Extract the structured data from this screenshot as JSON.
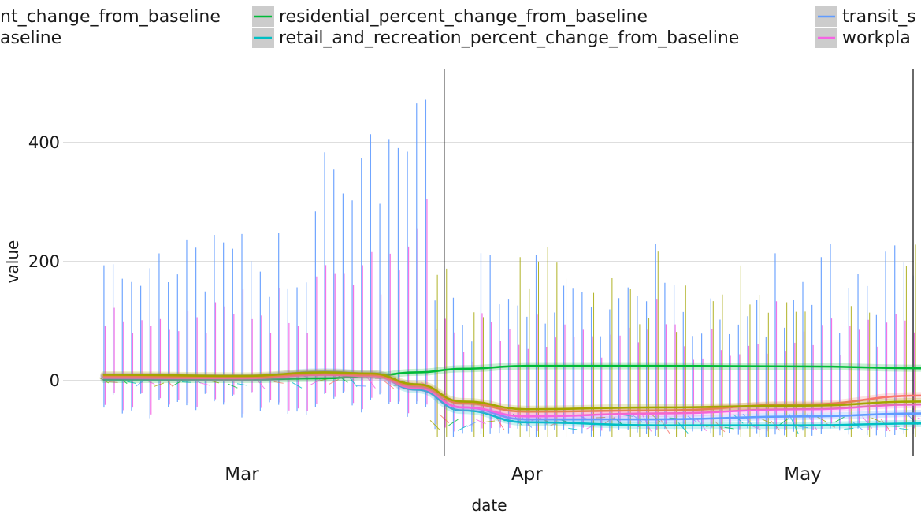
{
  "chart_data": {
    "type": "line",
    "xlabel": "date",
    "ylabel": "value",
    "x_range": [
      "2020-02-15",
      "2020-05-15"
    ],
    "ylim": [
      -135,
      530
    ],
    "y_ticks": [
      0,
      200,
      400
    ],
    "x_ticks": [
      {
        "date": "2020-03-01",
        "label": "Mar"
      },
      {
        "date": "2020-04-01",
        "label": "Apr"
      },
      {
        "date": "2020-05-01",
        "label": "May"
      }
    ],
    "grid": "horizontal",
    "vertical_lines": [
      "2020-03-23",
      "2020-05-19"
    ],
    "legend_position": "top",
    "legend": [
      {
        "label": "nt_change_from_baseline",
        "color": "#a3a500"
      },
      {
        "label": "aseline",
        "color": "#f8766d"
      },
      {
        "label": "residential_percent_change_from_baseline",
        "color": "#00ba38"
      },
      {
        "label": "retail_and_recreation_percent_change_from_baseline",
        "color": "#00bfc4"
      },
      {
        "label": "transit_s",
        "color": "#619cff"
      },
      {
        "label": "workpla",
        "color": "#f564e3"
      }
    ],
    "series": [
      {
        "name": "residential_percent_change_from_baseline",
        "color": "#00ba38",
        "x": [
          "2020-02-15",
          "2020-03-01",
          "2020-03-10",
          "2020-03-15",
          "2020-03-20",
          "2020-03-25",
          "2020-04-01",
          "2020-04-15",
          "2020-05-01",
          "2020-05-14"
        ],
        "values": [
          2,
          2,
          4,
          8,
          14,
          20,
          25,
          25,
          24,
          21
        ]
      },
      {
        "name": "retail_and_recreation_percent_change_from_baseline",
        "color": "#00bfc4",
        "x": [
          "2020-02-15",
          "2020-03-01",
          "2020-03-10",
          "2020-03-15",
          "2020-03-20",
          "2020-03-25",
          "2020-04-01",
          "2020-04-15",
          "2020-05-01",
          "2020-05-14"
        ],
        "values": [
          6,
          5,
          12,
          10,
          -15,
          -50,
          -70,
          -75,
          -75,
          -72
        ]
      },
      {
        "name": "transit_s",
        "color": "#619cff",
        "x": [
          "2020-02-15",
          "2020-03-01",
          "2020-03-10",
          "2020-03-15",
          "2020-03-20",
          "2020-03-25",
          "2020-04-01",
          "2020-04-15",
          "2020-05-01",
          "2020-05-14"
        ],
        "values": [
          8,
          6,
          15,
          12,
          -10,
          -45,
          -65,
          -65,
          -60,
          -55
        ]
      },
      {
        "name": "workpla",
        "color": "#f564e3",
        "x": [
          "2020-02-15",
          "2020-03-01",
          "2020-03-10",
          "2020-03-15",
          "2020-03-20",
          "2020-03-25",
          "2020-04-01",
          "2020-04-15",
          "2020-05-01",
          "2020-05-14"
        ],
        "values": [
          5,
          4,
          10,
          8,
          -12,
          -45,
          -60,
          -55,
          -48,
          -40
        ]
      },
      {
        "name": "aseline",
        "color": "#f8766d",
        "x": [
          "2020-02-15",
          "2020-03-01",
          "2020-03-10",
          "2020-03-15",
          "2020-03-20",
          "2020-03-25",
          "2020-04-01",
          "2020-04-15",
          "2020-05-01",
          "2020-05-14"
        ],
        "values": [
          8,
          6,
          12,
          10,
          -8,
          -38,
          -52,
          -50,
          -40,
          -25
        ]
      },
      {
        "name": "nt_change_from_baseline",
        "color": "#a3a500",
        "x": [
          "2020-02-15",
          "2020-03-01",
          "2020-03-10",
          "2020-03-15",
          "2020-03-20",
          "2020-03-25",
          "2020-04-01",
          "2020-04-15",
          "2020-05-01",
          "2020-05-14"
        ],
        "values": [
          10,
          8,
          14,
          12,
          -6,
          -35,
          -48,
          -45,
          -42,
          -35
        ]
      }
    ]
  }
}
